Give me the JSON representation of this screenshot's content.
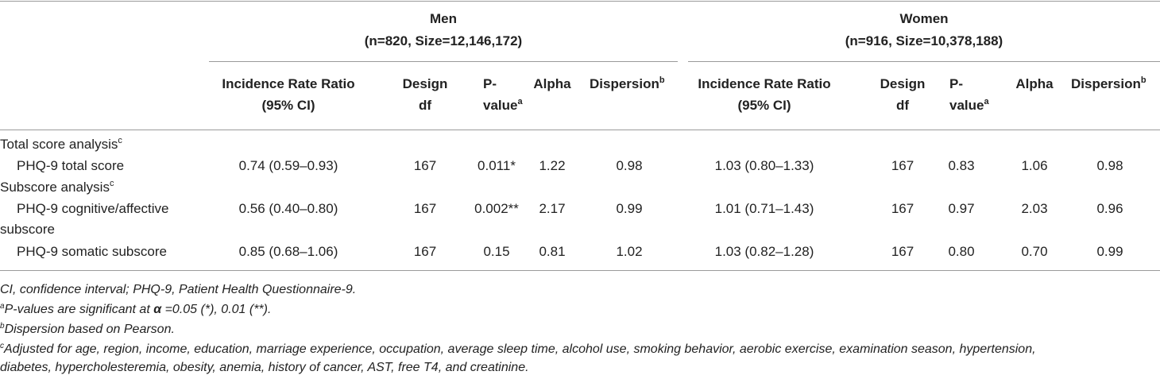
{
  "groups": {
    "men": {
      "label": "Men",
      "n": "(n=820, Size=12,146,172)"
    },
    "women": {
      "label": "Women",
      "n": "(n=916, Size=10,378,188)"
    }
  },
  "columns": {
    "irr_1": "Incidence Rate Ratio",
    "irr_2": "(95% CI)",
    "design_1": "Design",
    "design_2": "df",
    "p_1": "P-",
    "p_2": "value",
    "p_sup": "a",
    "alpha": "Alpha",
    "dispersion": "Dispersion",
    "dispersion_sup": "b"
  },
  "sections": {
    "total": {
      "label": "Total score analysis",
      "sup": "c"
    },
    "subscore": {
      "label": "Subscore analysis",
      "sup": "c"
    }
  },
  "rows": [
    {
      "label": "PHQ-9 total score",
      "label2": "",
      "men": {
        "irr": "0.74 (0.59–0.93)",
        "df": "167",
        "p": "0.011*",
        "alpha": "1.22",
        "disp": "0.98"
      },
      "women": {
        "irr": "1.03 (0.80–1.33)",
        "df": "167",
        "p": "0.83",
        "alpha": "1.06",
        "disp": "0.98"
      }
    },
    {
      "label": "PHQ-9 cognitive/affective",
      "label2": "subscore",
      "men": {
        "irr": "0.56 (0.40–0.80)",
        "df": "167",
        "p": "0.002**",
        "alpha": "2.17",
        "disp": "0.99"
      },
      "women": {
        "irr": "1.01 (0.71–1.43)",
        "df": "167",
        "p": "0.97",
        "alpha": "2.03",
        "disp": "0.96"
      }
    },
    {
      "label": "PHQ-9 somatic subscore",
      "label2": "",
      "men": {
        "irr": "0.85 (0.68–1.06)",
        "df": "167",
        "p": "0.15",
        "alpha": "0.81",
        "disp": "1.02"
      },
      "women": {
        "irr": "1.03 (0.82–1.28)",
        "df": "167",
        "p": "0.80",
        "alpha": "0.70",
        "disp": "0.99"
      }
    }
  ],
  "footnotes": {
    "abbrev": "CI, confidence interval; PHQ-9, Patient Health Questionnaire-9.",
    "a_sup": "a",
    "a_text_1": "P-values are significant at ",
    "a_alpha": "α",
    "a_text_2": " =0.05 (*), 0.01 (**).",
    "b_sup": "b",
    "b_text": "Dispersion based on Pearson.",
    "c_sup": "c",
    "c_text_1": "Adjusted for age, region, income, education, marriage experience, occupation, average sleep time, alcohol use, smoking behavior, aerobic exercise, examination season, hypertension,",
    "c_text_2": "diabetes, hypercholesteremia, obesity, anemia, history of cancer, AST, free T4, and creatinine."
  }
}
